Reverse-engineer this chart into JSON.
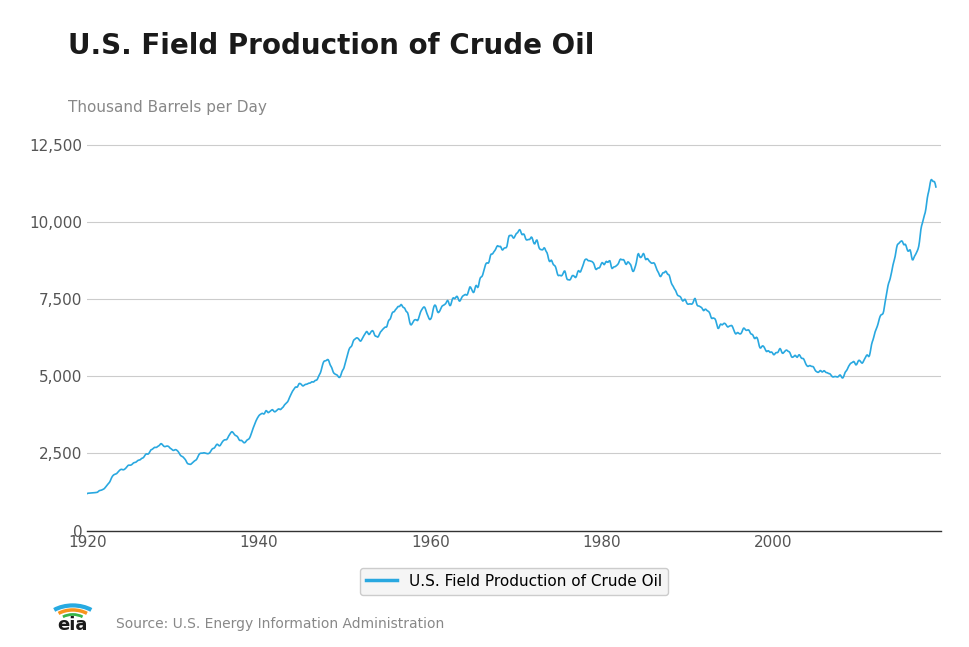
{
  "title": "U.S. Field Production of Crude Oil",
  "ylabel": "Thousand Barrels per Day",
  "line_color": "#29a8e0",
  "line_width": 1.2,
  "background_color": "#ffffff",
  "grid_color": "#cccccc",
  "ylim": [
    0,
    13000
  ],
  "yticks": [
    0,
    2500,
    5000,
    7500,
    10000,
    12500
  ],
  "xlim_start": 1920,
  "xlim_end": 2019.5,
  "xticks": [
    1920,
    1940,
    1960,
    1980,
    2000
  ],
  "legend_label": "U.S. Field Production of Crude Oil",
  "source_text": "Source: U.S. Energy Information Administration",
  "title_fontsize": 20,
  "ylabel_fontsize": 11,
  "tick_fontsize": 11,
  "legend_fontsize": 11,
  "source_fontsize": 10,
  "title_color": "#1a1a1a",
  "ylabel_color": "#888888",
  "tick_color": "#555555"
}
